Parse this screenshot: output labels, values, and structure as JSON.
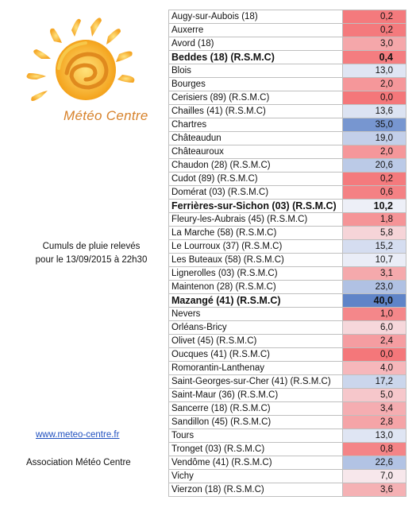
{
  "logo": {
    "text": "Météo Centre"
  },
  "caption": {
    "line1": "Cumuls de pluie relevés",
    "line2": "pour le 13/09/2015 à 22h30"
  },
  "website": "www.meteo-centre.fr",
  "association": "Association Météo Centre",
  "colors": {
    "low": "#f4777a",
    "high": "#5f84c8",
    "neutral": "#f7f7fb",
    "link": "#1f4fbf"
  },
  "rows": [
    {
      "name": "Augy-sur-Aubois (18)",
      "value": "0,2",
      "bold": false
    },
    {
      "name": "Auxerre",
      "value": "0,2",
      "bold": false
    },
    {
      "name": "Avord (18)",
      "value": "3,0",
      "bold": false
    },
    {
      "name": "Beddes (18) (R.S.M.C)",
      "value": "0,4",
      "bold": true
    },
    {
      "name": "Blois",
      "value": "13,0",
      "bold": false
    },
    {
      "name": "Bourges",
      "value": "2,0",
      "bold": false
    },
    {
      "name": "Cerisiers (89) (R.S.M.C)",
      "value": "0,0",
      "bold": false
    },
    {
      "name": "Chailles (41) (R.S.M.C)",
      "value": "13,6",
      "bold": false
    },
    {
      "name": "Chartres",
      "value": "35,0",
      "bold": false
    },
    {
      "name": "Châteaudun",
      "value": "19,0",
      "bold": false
    },
    {
      "name": "Châteauroux",
      "value": "2,0",
      "bold": false
    },
    {
      "name": "Chaudon (28) (R.S.M.C)",
      "value": "20,6",
      "bold": false
    },
    {
      "name": "Cudot (89) (R.S.M.C)",
      "value": "0,2",
      "bold": false
    },
    {
      "name": "Domérat (03) (R.S.M.C)",
      "value": "0,6",
      "bold": false
    },
    {
      "name": "Ferrières-sur-Sichon (03) (R.S.M.C)",
      "value": "10,2",
      "bold": true
    },
    {
      "name": "Fleury-les-Aubrais (45) (R.S.M.C)",
      "value": "1,8",
      "bold": false
    },
    {
      "name": "La Marche (58) (R.S.M.C)",
      "value": "5,8",
      "bold": false
    },
    {
      "name": "Le Lourroux (37) (R.S.M.C)",
      "value": "15,2",
      "bold": false
    },
    {
      "name": "Les Buteaux (58) (R.S.M.C)",
      "value": "10,7",
      "bold": false
    },
    {
      "name": "Lignerolles (03) (R.S.M.C)",
      "value": "3,1",
      "bold": false
    },
    {
      "name": "Maintenon (28) (R.S.M.C)",
      "value": "23,0",
      "bold": false
    },
    {
      "name": "Mazangé (41) (R.S.M.C)",
      "value": "40,0",
      "bold": true
    },
    {
      "name": "Nevers",
      "value": "1,0",
      "bold": false
    },
    {
      "name": "Orléans-Bricy",
      "value": "6,0",
      "bold": false
    },
    {
      "name": "Olivet (45) (R.S.M.C)",
      "value": "2,4",
      "bold": false
    },
    {
      "name": "Oucques (41) (R.S.M.C)",
      "value": "0,0",
      "bold": false
    },
    {
      "name": "Romorantin-Lanthenay",
      "value": "4,0",
      "bold": false
    },
    {
      "name": "Saint-Georges-sur-Cher (41) (R.S.M.C)",
      "value": "17,2",
      "bold": false
    },
    {
      "name": "Saint-Maur (36) (R.S.M.C)",
      "value": "5,0",
      "bold": false
    },
    {
      "name": "Sancerre (18) (R.S.M.C)",
      "value": "3,4",
      "bold": false
    },
    {
      "name": "Sandillon (45) (R.S.M.C)",
      "value": "2,8",
      "bold": false
    },
    {
      "name": "Tours",
      "value": "13,0",
      "bold": false
    },
    {
      "name": "Tronget (03) (R.S.M.C)",
      "value": "0,8",
      "bold": false
    },
    {
      "name": "Vendôme (41) (R.S.M.C)",
      "value": "22,6",
      "bold": false
    },
    {
      "name": "Vichy",
      "value": "7,0",
      "bold": false
    },
    {
      "name": "Vierzon (18) (R.S.M.C)",
      "value": "3,6",
      "bold": false
    }
  ]
}
